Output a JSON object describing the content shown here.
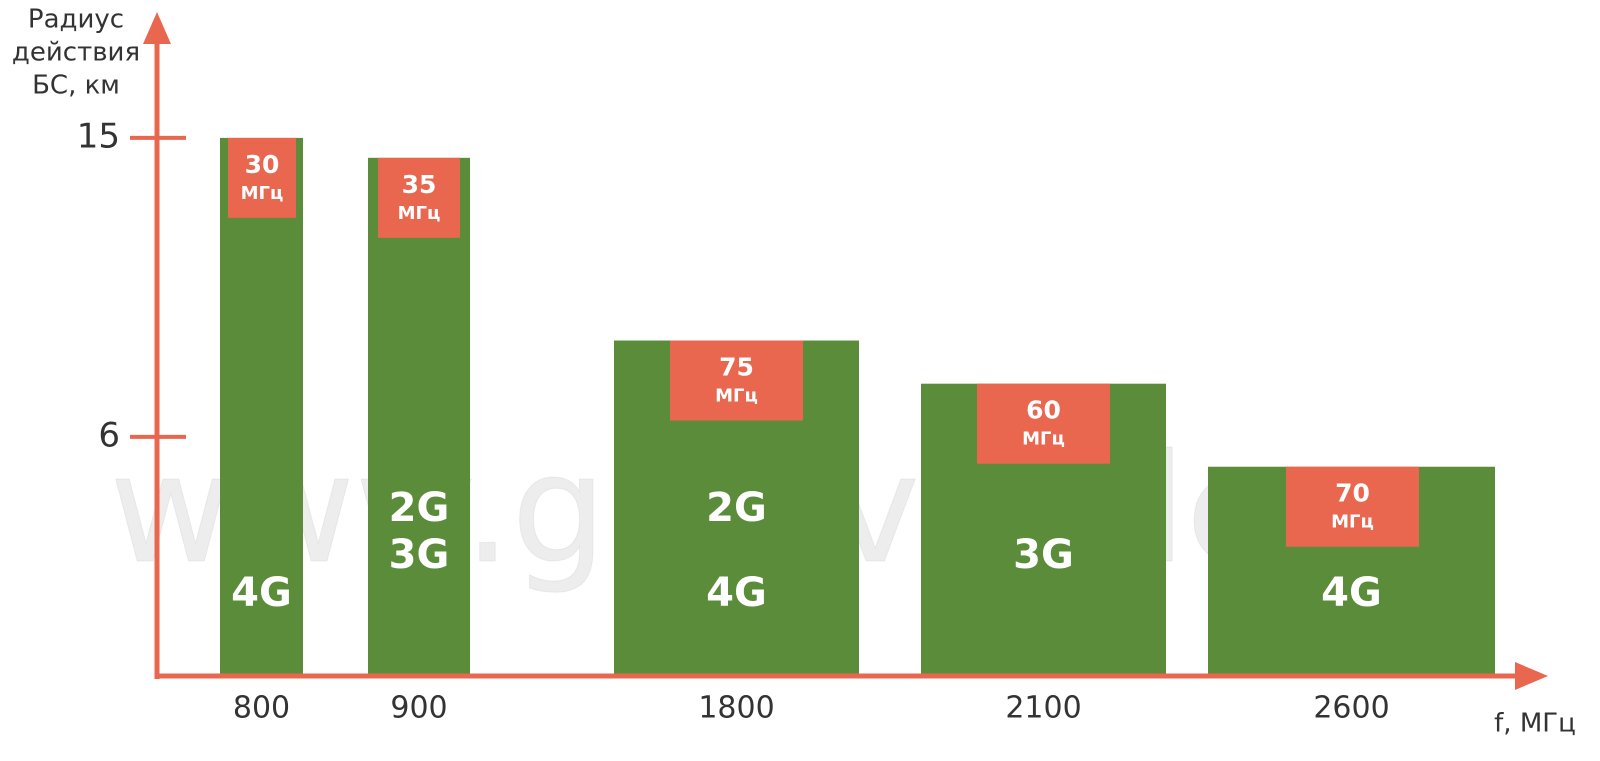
{
  "chart_data": {
    "type": "bar",
    "y_label": [
      "Радиус",
      "действия",
      "БС, км"
    ],
    "x_label": "f, МГц",
    "watermark": "www.gsmvezde.ru",
    "categories": [
      "800",
      "900",
      "1800",
      "2100",
      "2600"
    ],
    "values": [
      15,
      14.4,
      8.9,
      7.6,
      5.1
    ],
    "color": "#5b8c3a",
    "bandwidth": [
      30,
      35,
      75,
      60,
      70
    ],
    "bandwidth_unit": "МГц",
    "bandwidth_color": "#e9674f",
    "technologies": [
      [
        "4G"
      ],
      [
        "2G",
        "3G"
      ],
      [
        "2G",
        "4G"
      ],
      [
        "3G"
      ],
      [
        "4G"
      ]
    ],
    "ylim": [
      -1.2,
      18.7
    ],
    "yticks": [
      6,
      15
    ],
    "axis_color": "#e9674f"
  }
}
